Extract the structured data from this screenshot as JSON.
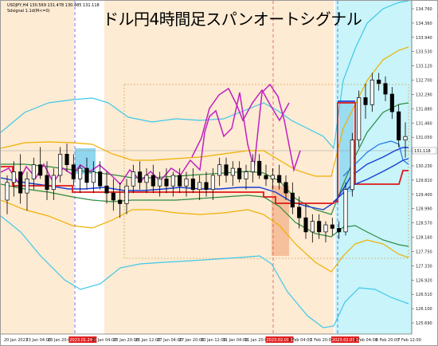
{
  "window": {
    "symbol_line": "USDJPY,H4  130.569 131.478 130.485 131.118",
    "indicator_line": "Sdsignal 1.1d(M<=0)"
  },
  "title": "ドル円4時間足スパンオートシグナル",
  "price_axis": {
    "labels": [
      "134.760",
      "134.360",
      "133.940",
      "133.530",
      "133.120",
      "132.700",
      "132.290",
      "131.880",
      "131.460",
      "131.050",
      "130.640",
      "130.230",
      "129.810",
      "129.400",
      "128.990",
      "128.570",
      "128.160",
      "127.750",
      "127.330",
      "126.920",
      "126.510",
      "126.100",
      "125.690"
    ],
    "current_price": "131.118"
  },
  "time_axis": {
    "labels": [
      {
        "text": "20 Jan 2023",
        "highlight": false
      },
      {
        "text": "23 Jan 04:00",
        "highlight": false
      },
      {
        "text": "23 Jan 20:00",
        "highlight": false
      },
      {
        "text": "2023.01.24 16:00",
        "highlight": true
      },
      {
        "text": "25 Jan 04:00",
        "highlight": false
      },
      {
        "text": "25 Jan 20:00",
        "highlight": false
      },
      {
        "text": "26 Jan 12:00",
        "highlight": false
      },
      {
        "text": "27 Jan 04:00",
        "highlight": false
      },
      {
        "text": "27 Jan 20:00",
        "highlight": false
      },
      {
        "text": "30 Jan 12:00",
        "highlight": false
      },
      {
        "text": "31 Jan 04:00",
        "highlight": false
      },
      {
        "text": "31 Jan 20:00",
        "highlight": false
      },
      {
        "text": "2023.02.01 16:00",
        "highlight": true
      },
      {
        "text": "2 Feb 04:00",
        "highlight": false
      },
      {
        "text": "2 Feb 20:00",
        "highlight": false
      },
      {
        "text": "2023.02.03 16:00",
        "highlight": true
      },
      {
        "text": "6 Feb 04:00",
        "highlight": false
      },
      {
        "text": "6 Feb 20:00",
        "highlight": false
      },
      {
        "text": "7 Feb 12:00",
        "highlight": false
      }
    ]
  },
  "colors": {
    "upper_band": "#f0b000",
    "mid_band": "#2e8b3e",
    "outer_band": "#3ec8e8",
    "span_a": "#e01818",
    "span_b": "#1a3fd6",
    "lagging": "#c020c0",
    "highlight_badge": "#e02020",
    "zone_light": "#fdebd3",
    "zone_cyan": "#c8f4fa"
  },
  "chart_data": {
    "type": "candlestick",
    "symbol": "USDJPY",
    "timeframe": "H4",
    "ohlc_current": {
      "open": 130.569,
      "high": 131.478,
      "low": 130.485,
      "close": 131.118
    },
    "ylim": [
      125.69,
      134.76
    ],
    "candles": [
      {
        "o": 129.3,
        "h": 130.0,
        "l": 128.9,
        "c": 129.8
      },
      {
        "o": 129.8,
        "h": 130.4,
        "l": 129.4,
        "c": 130.1
      },
      {
        "o": 130.1,
        "h": 130.6,
        "l": 129.2,
        "c": 129.5
      },
      {
        "o": 129.5,
        "h": 130.1,
        "l": 129.0,
        "c": 129.9
      },
      {
        "o": 129.9,
        "h": 130.5,
        "l": 129.6,
        "c": 130.3
      },
      {
        "o": 130.3,
        "h": 130.8,
        "l": 129.9,
        "c": 130.0
      },
      {
        "o": 130.0,
        "h": 130.4,
        "l": 129.3,
        "c": 129.6
      },
      {
        "o": 129.6,
        "h": 130.2,
        "l": 129.3,
        "c": 130.0
      },
      {
        "o": 130.0,
        "h": 130.8,
        "l": 129.8,
        "c": 130.6
      },
      {
        "o": 130.6,
        "h": 130.9,
        "l": 130.1,
        "c": 130.3
      },
      {
        "o": 130.3,
        "h": 130.6,
        "l": 129.7,
        "c": 129.9
      },
      {
        "o": 129.9,
        "h": 130.3,
        "l": 129.5,
        "c": 130.2
      },
      {
        "o": 130.2,
        "h": 130.5,
        "l": 129.6,
        "c": 129.8
      },
      {
        "o": 129.8,
        "h": 130.4,
        "l": 129.5,
        "c": 130.1
      },
      {
        "o": 130.1,
        "h": 130.4,
        "l": 129.6,
        "c": 129.7
      },
      {
        "o": 129.7,
        "h": 130.1,
        "l": 129.2,
        "c": 129.5
      },
      {
        "o": 129.5,
        "h": 129.9,
        "l": 129.0,
        "c": 129.3
      },
      {
        "o": 129.3,
        "h": 129.8,
        "l": 128.8,
        "c": 129.2
      },
      {
        "o": 129.2,
        "h": 129.9,
        "l": 128.9,
        "c": 129.7
      },
      {
        "o": 129.7,
        "h": 130.3,
        "l": 129.5,
        "c": 130.1
      },
      {
        "o": 130.1,
        "h": 130.4,
        "l": 129.6,
        "c": 129.8
      },
      {
        "o": 129.8,
        "h": 130.2,
        "l": 129.5,
        "c": 130.0
      },
      {
        "o": 130.0,
        "h": 130.3,
        "l": 129.5,
        "c": 129.7
      },
      {
        "o": 129.7,
        "h": 130.1,
        "l": 129.4,
        "c": 129.9
      },
      {
        "o": 129.9,
        "h": 130.2,
        "l": 129.5,
        "c": 129.7
      },
      {
        "o": 129.7,
        "h": 130.1,
        "l": 129.4,
        "c": 130.0
      },
      {
        "o": 130.0,
        "h": 130.2,
        "l": 129.5,
        "c": 129.7
      },
      {
        "o": 129.7,
        "h": 130.1,
        "l": 129.4,
        "c": 129.9
      },
      {
        "o": 129.9,
        "h": 130.2,
        "l": 129.5,
        "c": 129.6
      },
      {
        "o": 129.6,
        "h": 130.0,
        "l": 129.3,
        "c": 129.8
      },
      {
        "o": 129.8,
        "h": 130.1,
        "l": 129.4,
        "c": 129.6
      },
      {
        "o": 129.6,
        "h": 130.2,
        "l": 129.3,
        "c": 130.0
      },
      {
        "o": 130.0,
        "h": 130.5,
        "l": 129.7,
        "c": 130.3
      },
      {
        "o": 130.3,
        "h": 130.5,
        "l": 129.8,
        "c": 130.0
      },
      {
        "o": 130.0,
        "h": 130.4,
        "l": 129.7,
        "c": 130.2
      },
      {
        "o": 130.2,
        "h": 130.4,
        "l": 129.8,
        "c": 129.9
      },
      {
        "o": 129.9,
        "h": 130.3,
        "l": 129.6,
        "c": 130.1
      },
      {
        "o": 130.1,
        "h": 130.6,
        "l": 129.8,
        "c": 130.4
      },
      {
        "o": 130.4,
        "h": 130.6,
        "l": 129.9,
        "c": 130.0
      },
      {
        "o": 130.0,
        "h": 130.3,
        "l": 129.7,
        "c": 129.9
      },
      {
        "o": 129.9,
        "h": 130.2,
        "l": 129.6,
        "c": 130.0
      },
      {
        "o": 130.0,
        "h": 130.3,
        "l": 129.6,
        "c": 129.8
      },
      {
        "o": 129.8,
        "h": 130.0,
        "l": 129.3,
        "c": 129.5
      },
      {
        "o": 129.5,
        "h": 129.8,
        "l": 128.9,
        "c": 129.1
      },
      {
        "o": 129.1,
        "h": 129.4,
        "l": 128.5,
        "c": 128.8
      },
      {
        "o": 128.8,
        "h": 129.2,
        "l": 128.2,
        "c": 128.4
      },
      {
        "o": 128.4,
        "h": 128.9,
        "l": 128.1,
        "c": 128.7
      },
      {
        "o": 128.7,
        "h": 128.9,
        "l": 128.2,
        "c": 128.4
      },
      {
        "o": 128.4,
        "h": 128.7,
        "l": 128.1,
        "c": 128.6
      },
      {
        "o": 128.6,
        "h": 128.8,
        "l": 128.3,
        "c": 128.5
      },
      {
        "o": 128.5,
        "h": 128.7,
        "l": 128.2,
        "c": 128.4
      },
      {
        "o": 128.4,
        "h": 129.8,
        "l": 128.3,
        "c": 129.6
      },
      {
        "o": 129.6,
        "h": 131.2,
        "l": 129.4,
        "c": 131.0
      },
      {
        "o": 131.0,
        "h": 132.4,
        "l": 130.8,
        "c": 132.2
      },
      {
        "o": 132.2,
        "h": 132.6,
        "l": 131.6,
        "c": 132.0
      },
      {
        "o": 132.0,
        "h": 132.9,
        "l": 131.8,
        "c": 132.7
      },
      {
        "o": 132.7,
        "h": 132.9,
        "l": 132.4,
        "c": 132.6
      },
      {
        "o": 132.6,
        "h": 132.8,
        "l": 132.1,
        "c": 132.3
      },
      {
        "o": 132.3,
        "h": 132.5,
        "l": 131.6,
        "c": 131.8
      },
      {
        "o": 131.8,
        "h": 132.0,
        "l": 130.8,
        "c": 131.0
      },
      {
        "o": 131.0,
        "h": 131.5,
        "l": 130.5,
        "c": 131.1
      }
    ]
  }
}
